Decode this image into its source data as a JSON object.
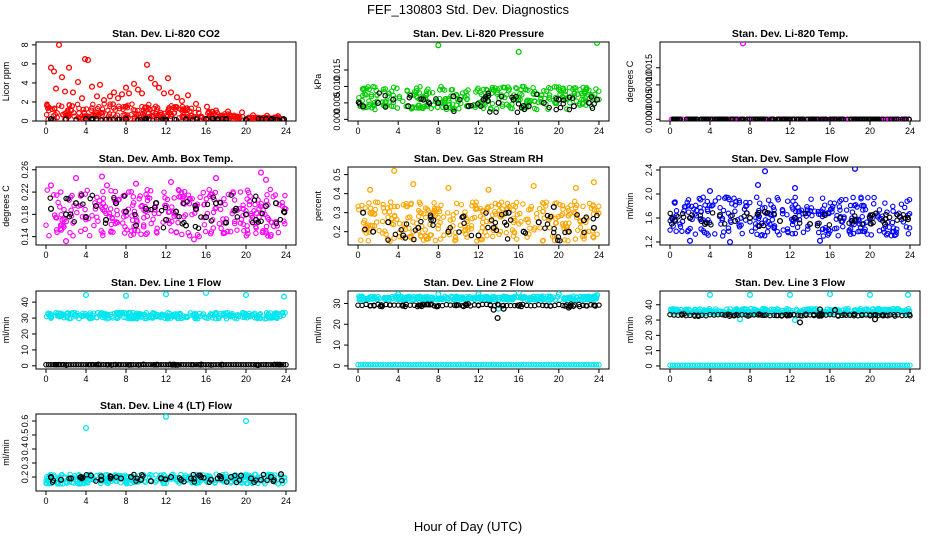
{
  "title": "FEF_130803  Std. Dev. Diagnostics",
  "xlabel": "Hour of Day (UTC)",
  "chart_data": [
    {
      "type": "scatter",
      "title": "Stan. Dev. Li-820 CO2",
      "ylabel": "Licor ppm",
      "xlim": [
        -1,
        25
      ],
      "ylim": [
        0,
        8.3
      ],
      "xticks": [
        0,
        4,
        8,
        12,
        16,
        20,
        24
      ],
      "yticks": [
        0,
        2,
        4,
        6,
        8
      ],
      "ytick_labels": [
        "0",
        "2",
        "4",
        "6",
        "8"
      ],
      "series": [
        {
          "color": "#ff0000",
          "approx_band": [
            0.1,
            1.8
          ],
          "x": [
            0.5,
            0.8,
            1.0,
            1.3,
            1.6,
            1.9,
            2.3,
            2.7,
            3.2,
            3.6,
            3.9,
            4.2,
            4.6,
            5.1,
            5.4,
            5.8,
            6.4,
            6.8,
            7.2,
            7.6,
            8.0,
            8.3,
            8.8,
            9.2,
            9.6,
            10.1,
            10.5,
            10.9,
            11.3,
            11.8,
            12.2,
            12.5,
            13.1,
            13.6,
            14.2,
            15.0,
            16.1,
            17.0,
            18.2,
            19.6,
            20.7,
            22.1,
            23.2
          ],
          "y": [
            5.6,
            5.2,
            3.4,
            8.0,
            4.6,
            3.1,
            5.6,
            3.0,
            4.1,
            2.4,
            6.5,
            6.4,
            3.6,
            2.6,
            3.8,
            2.2,
            2.6,
            3.0,
            2.4,
            2.8,
            3.5,
            2.9,
            3.9,
            3.3,
            2.9,
            5.9,
            4.5,
            3.9,
            3.5,
            2.9,
            4.5,
            3.0,
            2.5,
            2.1,
            2.7,
            1.8,
            1.5,
            1.1,
            1.0,
            0.9,
            0.6,
            0.55,
            0.5
          ]
        },
        {
          "color": "#000000",
          "approx_band": [
            0.1,
            0.25
          ],
          "x": [
            0.5,
            2,
            4,
            6,
            8,
            10,
            12,
            14,
            16,
            18,
            20,
            22,
            23.8
          ],
          "y": [
            0.2,
            0.18,
            0.2,
            0.15,
            0.2,
            0.22,
            0.15,
            0.18,
            0.2,
            0.15,
            0.17,
            0.2,
            0.18
          ]
        }
      ]
    },
    {
      "type": "scatter",
      "title": "Stan. Dev. Li-820 Pressure",
      "ylabel": "kPa",
      "xlim": [
        -1,
        25
      ],
      "ylim": [
        -0.0005,
        0.0235
      ],
      "xticks": [
        0,
        4,
        8,
        12,
        16,
        20,
        24
      ],
      "yticks": [
        0,
        0.005,
        0.01,
        0.015
      ],
      "ytick_labels": [
        "0.000",
        "0.005",
        "0.010",
        "0.015"
      ],
      "series": [
        {
          "color": "#00cc00",
          "approx_band": [
            0.003,
            0.01
          ],
          "x": [
            8.0,
            16.0,
            23.8
          ],
          "y": [
            0.0225,
            0.0205,
            0.0232
          ]
        },
        {
          "color": "#000000",
          "approx_band": [
            0.002,
            0.008
          ],
          "x": [
            0.5,
            2,
            3.5,
            5,
            6.5,
            8,
            9.5,
            11,
            12.5,
            14,
            15.5,
            17,
            18.5,
            20,
            21.5,
            23,
            23.8
          ],
          "y": [
            0.004,
            0.005,
            0.006,
            0.004,
            0.006,
            0.005,
            0.007,
            0.004,
            0.006,
            0.005,
            0.006,
            0.004,
            0.005,
            0.006,
            0.004,
            0.005,
            0.006
          ]
        }
      ]
    },
    {
      "type": "scatter",
      "title": "Stan. Dev. Li-820 Temp.",
      "ylabel": "degrees C",
      "xlim": [
        -1,
        25
      ],
      "ylim": [
        -5e-05,
        0.00225
      ],
      "xticks": [
        0,
        4,
        8,
        12,
        16,
        20,
        24
      ],
      "yticks": [
        0,
        0.0005,
        0.001,
        0.0015
      ],
      "ytick_labels": [
        "0.0000",
        "0.0005",
        "0.0010",
        "0.0015"
      ],
      "series": [
        {
          "color": "#ff00ff",
          "approx_band": [
            0,
            0
          ],
          "x": [
            7.3
          ],
          "y": [
            0.00221
          ]
        },
        {
          "color": "#000000",
          "approx_band": [
            0,
            0
          ],
          "x": [],
          "y": []
        }
      ]
    },
    {
      "type": "scatter",
      "title": "Stan. Dev. Amb. Box Temp.",
      "ylabel": "degrees C",
      "xlim": [
        -1,
        25
      ],
      "ylim": [
        0.125,
        0.265
      ],
      "xticks": [
        0,
        4,
        8,
        12,
        16,
        20,
        24
      ],
      "yticks": [
        0.14,
        0.18,
        0.22,
        0.26
      ],
      "ytick_labels": [
        "0.14",
        "0.18",
        "0.22",
        "0.26"
      ],
      "series": [
        {
          "color": "#ff00ff",
          "approx_band": [
            0.14,
            0.225
          ],
          "x": [
            0.5,
            3.0,
            5.6,
            6.1,
            9.0,
            12.5,
            17.0,
            21.5,
            22.0,
            2.0,
            14.8
          ],
          "y": [
            0.232,
            0.245,
            0.248,
            0.232,
            0.235,
            0.238,
            0.245,
            0.255,
            0.242,
            0.132,
            0.135
          ]
        },
        {
          "color": "#000000",
          "approx_band": [
            0.155,
            0.215
          ],
          "x": [
            0.5,
            2,
            3,
            4,
            5,
            6,
            7,
            8,
            9,
            10,
            11,
            12,
            13,
            14,
            15,
            16,
            17,
            18,
            19,
            20,
            21,
            22,
            23,
            23.8
          ],
          "y": [
            0.19,
            0.18,
            0.2,
            0.175,
            0.195,
            0.17,
            0.2,
            0.185,
            0.16,
            0.19,
            0.2,
            0.17,
            0.185,
            0.16,
            0.19,
            0.175,
            0.2,
            0.165,
            0.19,
            0.18,
            0.17,
            0.195,
            0.2,
            0.185
          ]
        }
      ]
    },
    {
      "type": "scatter",
      "title": "Stan. Dev. Gas Stream RH",
      "ylabel": "percent",
      "xlim": [
        -1,
        25
      ],
      "ylim": [
        0.13,
        0.54
      ],
      "xticks": [
        0,
        4,
        8,
        12,
        16,
        20,
        24
      ],
      "yticks": [
        0.2,
        0.3,
        0.4,
        0.5
      ],
      "ytick_labels": [
        "0.2",
        "0.3",
        "0.4",
        "0.5"
      ],
      "series": [
        {
          "color": "#ffa500",
          "approx_band": [
            0.15,
            0.36
          ],
          "x": [
            3.6,
            1.2,
            5.5,
            9.0,
            13.0,
            17.5,
            21.7,
            23.5
          ],
          "y": [
            0.52,
            0.42,
            0.45,
            0.43,
            0.42,
            0.44,
            0.43,
            0.46
          ]
        },
        {
          "color": "#000000",
          "approx_band": [
            0.15,
            0.3
          ],
          "x": [
            0.5,
            1.5,
            3,
            4.5,
            6,
            7.5,
            9,
            10.5,
            12,
            13.5,
            15,
            16.5,
            18,
            19.5,
            21,
            22.5,
            23.5
          ],
          "y": [
            0.3,
            0.2,
            0.25,
            0.18,
            0.22,
            0.26,
            0.2,
            0.28,
            0.18,
            0.22,
            0.3,
            0.2,
            0.25,
            0.33,
            0.2,
            0.26,
            0.22
          ]
        }
      ]
    },
    {
      "type": "scatter",
      "title": "Stan. Dev. Sample Flow",
      "ylabel": "ml/min",
      "xlim": [
        -1,
        25
      ],
      "ylim": [
        1.15,
        2.45
      ],
      "xticks": [
        0,
        4,
        8,
        12,
        16,
        20,
        24
      ],
      "yticks": [
        1.2,
        1.6,
        2.0,
        2.4
      ],
      "ytick_labels": [
        "1.2",
        "1.6",
        "2.0",
        "2.4"
      ],
      "series": [
        {
          "color": "#0000ff",
          "approx_band": [
            1.3,
            1.95
          ],
          "x": [
            9.5,
            18.5,
            12.5,
            4.0,
            8.8,
            6.0,
            2.0,
            15.0
          ],
          "y": [
            2.38,
            2.42,
            2.1,
            2.05,
            2.15,
            1.2,
            1.22,
            1.22
          ]
        },
        {
          "color": "#000000",
          "approx_band": [
            1.45,
            1.7
          ],
          "x": [
            0.5,
            2,
            3.5,
            5,
            6.5,
            8,
            9.5,
            11,
            12.5,
            14,
            15.5,
            17,
            18.5,
            20,
            21.5,
            23,
            23.8
          ],
          "y": [
            1.55,
            1.6,
            1.5,
            1.65,
            1.55,
            1.6,
            1.7,
            1.55,
            1.6,
            1.5,
            1.65,
            1.6,
            1.55,
            1.6,
            1.5,
            1.62,
            1.58
          ]
        }
      ]
    },
    {
      "type": "scatter",
      "title": "Stan. Dev. Line 1 Flow",
      "ylabel": "ml/min",
      "xlim": [
        -1,
        25
      ],
      "ylim": [
        -2,
        47
      ],
      "xticks": [
        0,
        4,
        8,
        12,
        16,
        20,
        24
      ],
      "yticks": [
        0,
        10,
        20,
        30,
        40
      ],
      "ytick_labels": [
        "0",
        "10",
        "20",
        "30",
        "40"
      ],
      "series": [
        {
          "color": "#00e5ee",
          "approx_band": [
            29.5,
            33.5
          ],
          "x": [
            4.0,
            8.0,
            12.0,
            16.0,
            20.0,
            23.8
          ],
          "y": [
            44.5,
            44.0,
            45.0,
            45.8,
            44.5,
            43.5
          ]
        },
        {
          "color": "#000000",
          "approx_band": [
            0.4,
            1.0
          ],
          "x": [],
          "y": []
        }
      ]
    },
    {
      "type": "scatter",
      "title": "Stan. Dev. Line 2 Flow",
      "ylabel": "ml/min",
      "xlim": [
        -1,
        25
      ],
      "ylim": [
        -1.5,
        36
      ],
      "xticks": [
        0,
        4,
        8,
        12,
        16,
        20,
        24
      ],
      "yticks": [
        0,
        10,
        20,
        30
      ],
      "ytick_labels": [
        "0",
        "10",
        "20",
        "30"
      ],
      "series": [
        {
          "color": "#00e5ee",
          "approx_band": [
            31.5,
            33.5
          ],
          "x": [
            4.0,
            8.0,
            12.0,
            16.0,
            20.0,
            23.8,
            14.0
          ],
          "y": [
            34.5,
            34.5,
            34.5,
            35.2,
            34.5,
            34.0,
            27.5
          ]
        },
        {
          "color": "#000000",
          "approx_band": [
            28.5,
            29.8
          ],
          "x": [
            13.9,
            13.5,
            14.5,
            21.0
          ],
          "y": [
            23.0,
            27.0,
            27.5,
            28.0
          ]
        }
      ]
    },
    {
      "type": "scatter",
      "title": "Stan. Dev. Line 3 Flow",
      "ylabel": "ml/min",
      "xlim": [
        -1,
        25
      ],
      "ylim": [
        -2,
        49
      ],
      "xticks": [
        0,
        4,
        8,
        12,
        16,
        20,
        24
      ],
      "yticks": [
        0,
        10,
        20,
        30,
        40
      ],
      "ytick_labels": [
        "0",
        "10",
        "20",
        "30",
        "40"
      ],
      "series": [
        {
          "color": "#00e5ee",
          "approx_band": [
            34,
            37.5
          ],
          "x": [
            4.0,
            8.0,
            12.0,
            16.0,
            20.0,
            23.8,
            7.0,
            12.5
          ],
          "y": [
            46.5,
            46.5,
            46.5,
            47.0,
            46.5,
            46.5,
            30.5,
            30.0
          ]
        },
        {
          "color": "#000000",
          "approx_band": [
            32.5,
            34
          ],
          "x": [
            13.0,
            15.0,
            16.5,
            20.5
          ],
          "y": [
            28.5,
            37.0,
            36.5,
            30.5
          ]
        }
      ]
    },
    {
      "type": "scatter",
      "title": "Stan. Dev. Line 4 (LT) Flow",
      "ylabel": "ml/min",
      "xlim": [
        -1,
        25
      ],
      "ylim": [
        0.1,
        0.65
      ],
      "xticks": [
        0,
        4,
        8,
        12,
        16,
        20,
        24
      ],
      "yticks": [
        0.2,
        0.3,
        0.4,
        0.5,
        0.6
      ],
      "ytick_labels": [
        "0.2",
        "0.3",
        "0.4",
        "0.5",
        "0.6"
      ],
      "series": [
        {
          "color": "#00e5ee",
          "approx_band": [
            0.15,
            0.22
          ],
          "x": [
            4.0,
            12.0,
            20.0
          ],
          "y": [
            0.55,
            0.63,
            0.6
          ]
        },
        {
          "color": "#000000",
          "approx_band": [
            0.16,
            0.22
          ],
          "x": [
            0.5,
            1.5,
            2.5,
            3.5,
            4.5,
            5.5,
            6.5,
            7.5,
            8.5,
            9.5,
            10.5,
            11.5,
            12.5,
            13.5,
            14.5,
            15.5,
            16.5,
            17.5,
            18.5,
            19.5,
            20.5,
            21.5,
            22.5,
            23.5
          ],
          "y": [
            0.2,
            0.18,
            0.19,
            0.2,
            0.21,
            0.18,
            0.2,
            0.19,
            0.2,
            0.18,
            0.17,
            0.19,
            0.2,
            0.18,
            0.19,
            0.2,
            0.18,
            0.19,
            0.2,
            0.21,
            0.19,
            0.18,
            0.2,
            0.22
          ]
        }
      ]
    }
  ]
}
